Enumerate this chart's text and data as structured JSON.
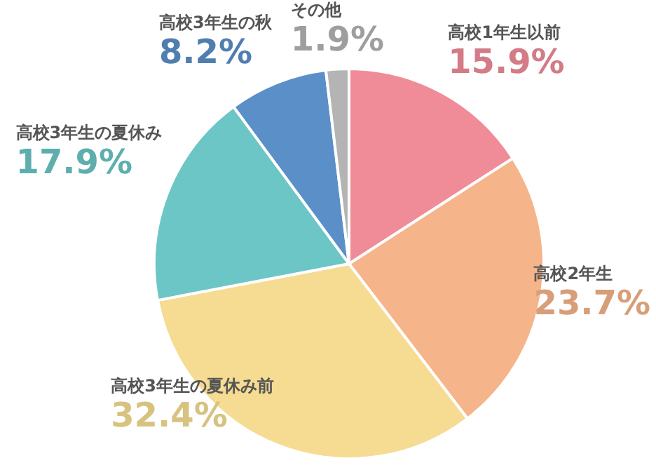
{
  "chart_data": {
    "type": "pie",
    "categories": [
      "高校1年生以前",
      "高校2年生",
      "高校3年生の夏休み前",
      "高校3年生の夏休み",
      "高校3年生の秋",
      "その他"
    ],
    "values": [
      15.9,
      23.7,
      32.4,
      17.9,
      8.2,
      1.9
    ],
    "value_labels": [
      "15.9%",
      "23.7%",
      "32.4%",
      "17.9%",
      "8.2%",
      "1.9%"
    ],
    "colors": [
      "#f08c98",
      "#f5b48a",
      "#f5dc92",
      "#6cc6c6",
      "#5b8fc8",
      "#b4b4b4"
    ],
    "legend": false
  }
}
